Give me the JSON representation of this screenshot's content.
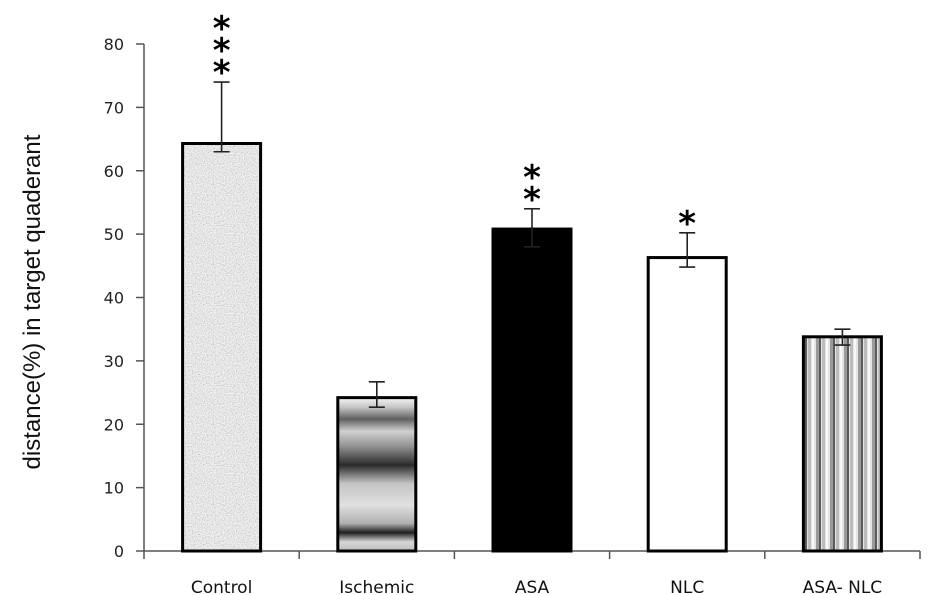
{
  "chart_data": {
    "type": "bar",
    "title": "",
    "xlabel": "",
    "ylabel": "distance(%) in target quaderant",
    "ylim": [
      0,
      80
    ],
    "yticks": [
      0,
      10,
      20,
      30,
      40,
      50,
      60,
      70,
      80
    ],
    "grid": false,
    "categories": [
      "Control",
      "Ischemic",
      "ASA",
      "NLC",
      "ASA- NLC"
    ],
    "values": [
      64.3,
      24.2,
      50.8,
      46.3,
      33.8
    ],
    "error_upper": [
      74.0,
      26.7,
      54.0,
      50.2,
      35.0
    ],
    "error_lower": [
      63.0,
      22.7,
      48.0,
      44.8,
      32.5
    ],
    "significance": [
      "***",
      "",
      "**",
      "*",
      ""
    ],
    "fills": [
      "grey-noise",
      "grey-horizontal-gradient",
      "black",
      "white",
      "grey-vertical-stripes"
    ]
  }
}
